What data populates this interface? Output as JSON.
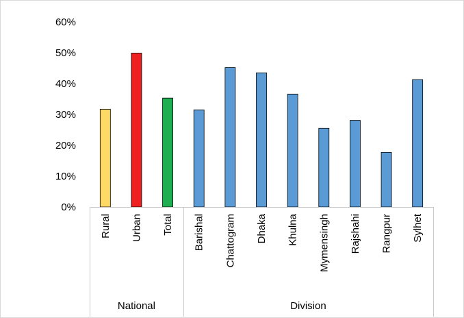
{
  "chart_data": {
    "type": "bar",
    "categories": [
      "Rural",
      "Urban",
      "Total",
      "Barishal",
      "Chattogram",
      "Dhaka",
      "Khulna",
      "Mymensingh",
      "Rajshahi",
      "Rangpur",
      "Sylhet"
    ],
    "values": [
      31.7,
      49.9,
      35.3,
      31.5,
      45.2,
      43.5,
      36.6,
      25.5,
      28.1,
      17.7,
      41.3
    ],
    "groups": [
      {
        "label": "National",
        "categories": [
          "Rural",
          "Urban",
          "Total"
        ]
      },
      {
        "label": "Division",
        "categories": [
          "Barishal",
          "Chattogram",
          "Dhaka",
          "Khulna",
          "Mymensingh",
          "Rajshahi",
          "Rangpur",
          "Sylhet"
        ]
      }
    ],
    "bar_colors": [
      "#FFD966",
      "#EE2020",
      "#1FAF50",
      "#5B9BD5",
      "#5B9BD5",
      "#5B9BD5",
      "#5B9BD5",
      "#5B9BD5",
      "#5B9BD5",
      "#5B9BD5",
      "#5B9BD5"
    ],
    "yticks": [
      "0%",
      "10%",
      "20%",
      "30%",
      "40%",
      "50%",
      "60%"
    ],
    "ylim": [
      0,
      60
    ],
    "title": "",
    "xlabel": "",
    "ylabel": "",
    "grid": false,
    "legend": "none"
  }
}
